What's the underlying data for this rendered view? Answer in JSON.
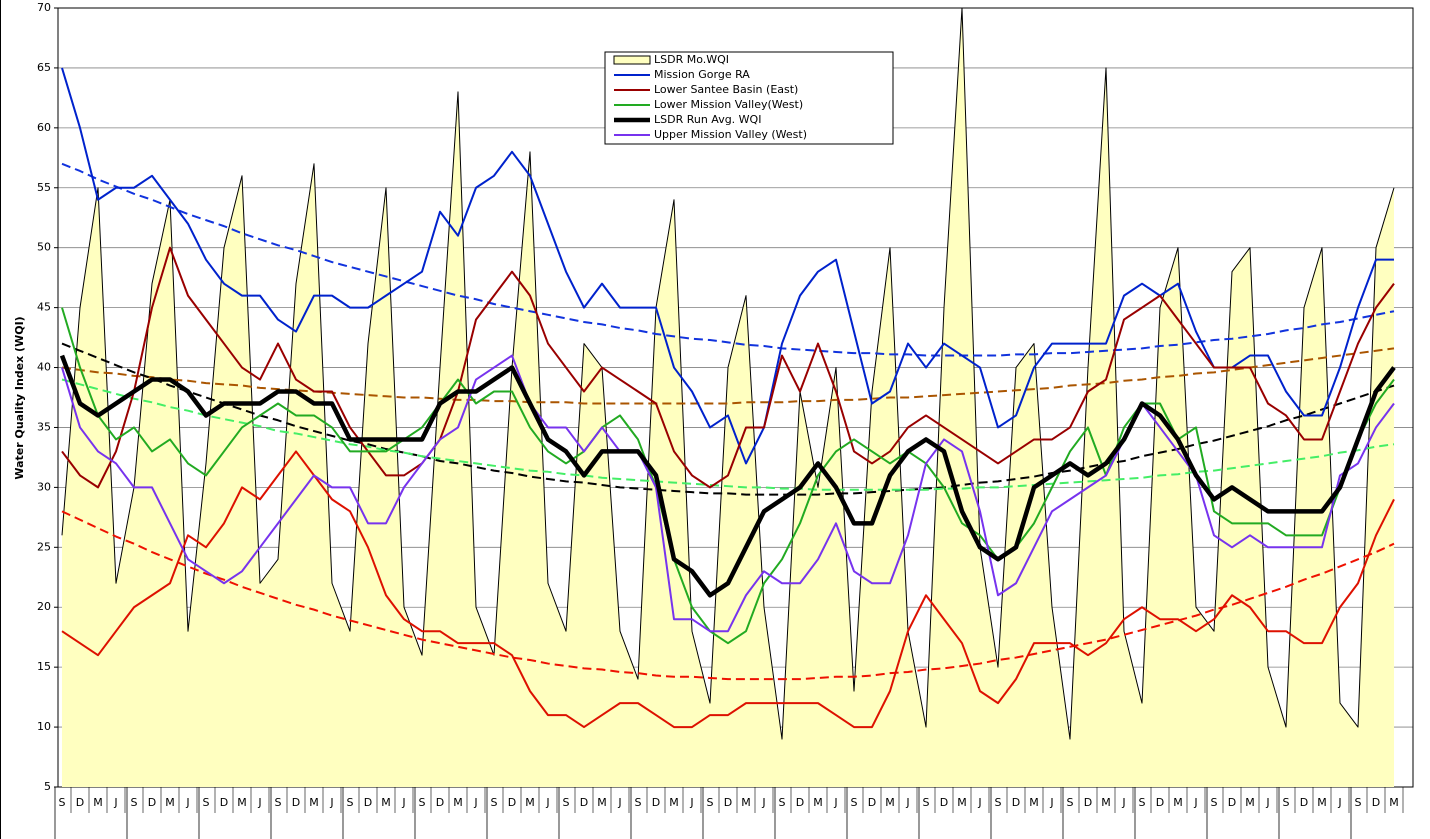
{
  "chart_data": {
    "type": "line",
    "y_label": "Water Quality Index (WQI)",
    "ylim": [
      5,
      70
    ],
    "yticks": [
      5,
      10,
      15,
      20,
      25,
      30,
      35,
      40,
      45,
      50,
      55,
      60,
      65,
      70
    ],
    "grid": true,
    "legend_position": "top",
    "categories": [
      "S",
      "D",
      "M",
      "J",
      "S",
      "D",
      "M",
      "J",
      "S",
      "D",
      "M",
      "J",
      "S",
      "D",
      "M",
      "J",
      "S",
      "D",
      "M",
      "J",
      "S",
      "D",
      "M",
      "J",
      "S",
      "D",
      "M",
      "J",
      "S",
      "D",
      "M",
      "J",
      "S",
      "D",
      "M",
      "J",
      "S",
      "D",
      "M",
      "J",
      "S",
      "D",
      "M",
      "J",
      "S",
      "D",
      "M",
      "J",
      "S",
      "D",
      "M",
      "J",
      "S",
      "D",
      "M",
      "J",
      "S",
      "D",
      "M",
      "J",
      "S",
      "D",
      "M",
      "J",
      "S",
      "D",
      "M",
      "J",
      "S",
      "D",
      "M",
      "J",
      "S",
      "D",
      "M"
    ],
    "series": [
      {
        "name": "LSDR Mo.WQI",
        "style": "area",
        "fill": "#ffffc0",
        "color": "#000000",
        "width": 1,
        "values": [
          26,
          45,
          55,
          22,
          30,
          47,
          54,
          18,
          32,
          50,
          56,
          22,
          24,
          47,
          57,
          22,
          18,
          42,
          55,
          20,
          16,
          40,
          63,
          20,
          16,
          40,
          58,
          22,
          18,
          42,
          40,
          18,
          14,
          45,
          54,
          18,
          12,
          40,
          46,
          20,
          9,
          38,
          30,
          40,
          13,
          38,
          50,
          18,
          10,
          45,
          70,
          25,
          15,
          40,
          42,
          20,
          9,
          40,
          65,
          18,
          12,
          45,
          50,
          20,
          18,
          48,
          50,
          15,
          10,
          45,
          50,
          12,
          10,
          50,
          55
        ]
      },
      {
        "style": "dashed",
        "color": "#1133dd",
        "width": 2,
        "values": [
          57.0,
          56.4,
          55.7,
          55.1,
          54.5,
          54.0,
          53.4,
          52.8,
          52.3,
          51.8,
          51.2,
          50.7,
          50.2,
          49.8,
          49.3,
          48.8,
          48.4,
          48.0,
          47.6,
          47.2,
          46.8,
          46.4,
          46.0,
          45.7,
          45.3,
          45.0,
          44.7,
          44.4,
          44.1,
          43.8,
          43.6,
          43.3,
          43.1,
          42.8,
          42.6,
          42.4,
          42.3,
          42.1,
          41.9,
          41.8,
          41.6,
          41.5,
          41.4,
          41.3,
          41.2,
          41.2,
          41.1,
          41.1,
          41.0,
          41.0,
          41.0,
          41.0,
          41.0,
          41.1,
          41.1,
          41.2,
          41.2,
          41.3,
          41.4,
          41.5,
          41.6,
          41.8,
          41.9,
          42.1,
          42.3,
          42.4,
          42.6,
          42.8,
          43.1,
          43.3,
          43.6,
          43.8,
          44.1,
          44.4,
          44.7
        ]
      },
      {
        "style": "dashed",
        "color": "#aa5500",
        "width": 2,
        "values": [
          40.0,
          39.8,
          39.6,
          39.5,
          39.3,
          39.2,
          39.0,
          38.9,
          38.7,
          38.6,
          38.5,
          38.3,
          38.2,
          38.1,
          38.0,
          37.9,
          37.8,
          37.7,
          37.6,
          37.5,
          37.5,
          37.4,
          37.3,
          37.3,
          37.2,
          37.2,
          37.1,
          37.1,
          37.1,
          37.0,
          37.0,
          37.0,
          37.0,
          37.0,
          37.0,
          37.0,
          37.0,
          37.0,
          37.1,
          37.1,
          37.1,
          37.2,
          37.2,
          37.3,
          37.3,
          37.4,
          37.5,
          37.5,
          37.6,
          37.7,
          37.8,
          37.9,
          38.0,
          38.1,
          38.2,
          38.3,
          38.5,
          38.6,
          38.7,
          38.9,
          39.0,
          39.2,
          39.3,
          39.5,
          39.6,
          39.8,
          40.0,
          40.2,
          40.4,
          40.6,
          40.8,
          41.0,
          41.2,
          41.4,
          41.6
        ]
      },
      {
        "style": "dashed",
        "color": "#000000",
        "width": 2,
        "values": [
          42.0,
          41.4,
          40.8,
          40.2,
          39.6,
          39.1,
          38.5,
          38.0,
          37.5,
          37.0,
          36.5,
          36.0,
          35.6,
          35.1,
          34.7,
          34.3,
          33.9,
          33.6,
          33.2,
          32.9,
          32.6,
          32.2,
          32.0,
          31.7,
          31.4,
          31.2,
          30.9,
          30.7,
          30.5,
          30.4,
          30.2,
          30.0,
          29.9,
          29.8,
          29.7,
          29.6,
          29.5,
          29.5,
          29.4,
          29.4,
          29.4,
          29.4,
          29.4,
          29.5,
          29.5,
          29.6,
          29.7,
          29.8,
          29.9,
          30.0,
          30.2,
          30.4,
          30.5,
          30.7,
          30.9,
          31.2,
          31.4,
          31.7,
          32.0,
          32.2,
          32.6,
          32.9,
          33.2,
          33.6,
          33.9,
          34.3,
          34.7,
          35.1,
          35.6,
          36.0,
          36.5,
          37.0,
          37.5,
          38.0,
          38.5
        ]
      },
      {
        "style": "dashed",
        "color": "#44ee66",
        "width": 2,
        "values": [
          39.0,
          38.6,
          38.2,
          37.8,
          37.4,
          37.1,
          36.7,
          36.4,
          36.0,
          35.7,
          35.4,
          35.1,
          34.7,
          34.5,
          34.2,
          33.9,
          33.6,
          33.4,
          33.1,
          32.9,
          32.6,
          32.4,
          32.2,
          32.0,
          31.8,
          31.6,
          31.4,
          31.3,
          31.1,
          31.0,
          30.8,
          30.7,
          30.6,
          30.5,
          30.4,
          30.3,
          30.2,
          30.1,
          30.0,
          30.0,
          29.9,
          29.9,
          29.8,
          29.8,
          29.8,
          29.8,
          29.8,
          29.8,
          29.8,
          29.9,
          29.9,
          30.0,
          30.0,
          30.1,
          30.2,
          30.3,
          30.4,
          30.5,
          30.6,
          30.7,
          30.8,
          31.0,
          31.1,
          31.3,
          31.4,
          31.6,
          31.8,
          32.0,
          32.2,
          32.4,
          32.6,
          32.9,
          33.1,
          33.4,
          33.6
        ]
      },
      {
        "style": "dashed",
        "color": "#ee1100",
        "width": 2,
        "values": [
          28.0,
          27.3,
          26.6,
          25.9,
          25.3,
          24.6,
          24.0,
          23.4,
          22.8,
          22.3,
          21.7,
          21.2,
          20.7,
          20.2,
          19.8,
          19.3,
          18.9,
          18.5,
          18.1,
          17.7,
          17.3,
          17.0,
          16.7,
          16.4,
          16.1,
          15.8,
          15.6,
          15.3,
          15.1,
          14.9,
          14.8,
          14.6,
          14.5,
          14.3,
          14.2,
          14.2,
          14.1,
          14.0,
          14.0,
          14.0,
          14.0,
          14.0,
          14.1,
          14.2,
          14.2,
          14.3,
          14.5,
          14.6,
          14.8,
          14.9,
          15.1,
          15.3,
          15.6,
          15.8,
          16.1,
          16.4,
          16.7,
          17.0,
          17.3,
          17.7,
          18.1,
          18.5,
          18.9,
          19.3,
          19.8,
          20.2,
          20.7,
          21.2,
          21.7,
          22.3,
          22.8,
          23.4,
          24.0,
          24.6,
          25.3
        ]
      },
      {
        "style": "solid",
        "color": "#dd1100",
        "width": 2,
        "values": [
          18,
          17,
          16,
          18,
          20,
          21,
          22,
          26,
          25,
          27,
          30,
          29,
          31,
          33,
          31,
          29,
          28,
          25,
          21,
          19,
          18,
          18,
          17,
          17,
          17,
          16,
          13,
          11,
          11,
          10,
          11,
          12,
          12,
          11,
          10,
          10,
          11,
          11,
          12,
          12,
          12,
          12,
          12,
          11,
          10,
          10,
          13,
          18,
          21,
          19,
          17,
          13,
          12,
          14,
          17,
          17,
          17,
          16,
          17,
          19,
          20,
          19,
          19,
          18,
          19,
          21,
          20,
          18,
          18,
          17,
          17,
          20,
          22,
          26,
          29
        ]
      },
      {
        "name": "Mission Gorge RA",
        "style": "solid",
        "color": "#0022cc",
        "width": 2,
        "values": [
          65,
          60,
          54,
          55,
          55,
          56,
          54,
          52,
          49,
          47,
          46,
          46,
          44,
          43,
          46,
          46,
          45,
          45,
          46,
          47,
          48,
          53,
          51,
          55,
          56,
          58,
          56,
          52,
          48,
          45,
          47,
          45,
          45,
          45,
          40,
          38,
          35,
          36,
          32,
          35,
          42,
          46,
          48,
          49,
          43,
          37,
          38,
          42,
          40,
          42,
          41,
          40,
          35,
          36,
          40,
          42,
          42,
          42,
          42,
          46,
          47,
          46,
          47,
          43,
          40,
          40,
          41,
          41,
          38,
          36,
          36,
          40,
          45,
          49,
          49
        ]
      },
      {
        "name": "Lower Santee Basin (East)",
        "style": "solid",
        "color": "#990000",
        "width": 2,
        "values": [
          33,
          31,
          30,
          33,
          38,
          45,
          50,
          46,
          44,
          42,
          40,
          39,
          42,
          39,
          38,
          38,
          35,
          33,
          31,
          31,
          32,
          34,
          38,
          44,
          46,
          48,
          46,
          42,
          40,
          38,
          40,
          39,
          38,
          37,
          33,
          31,
          30,
          31,
          35,
          35,
          41,
          38,
          42,
          38,
          33,
          32,
          33,
          35,
          36,
          35,
          34,
          33,
          32,
          33,
          34,
          34,
          35,
          38,
          39,
          44,
          45,
          46,
          44,
          42,
          40,
          40,
          40,
          37,
          36,
          34,
          34,
          38,
          42,
          45,
          47
        ]
      },
      {
        "name": "Lower Mission Valley(West)",
        "style": "solid",
        "color": "#22aa22",
        "width": 2,
        "values": [
          45,
          40,
          36,
          34,
          35,
          33,
          34,
          32,
          31,
          33,
          35,
          36,
          37,
          36,
          36,
          35,
          33,
          33,
          33,
          34,
          35,
          37,
          39,
          37,
          38,
          38,
          35,
          33,
          32,
          33,
          35,
          36,
          34,
          30,
          24,
          20,
          18,
          17,
          18,
          22,
          24,
          27,
          31,
          33,
          34,
          33,
          32,
          33,
          32,
          30,
          27,
          26,
          24,
          25,
          27,
          30,
          33,
          35,
          31,
          35,
          37,
          37,
          34,
          35,
          28,
          27,
          27,
          27,
          26,
          26,
          26,
          30,
          34,
          37,
          39
        ]
      },
      {
        "name": "Upper Mission Valley (West)",
        "style": "solid",
        "color": "#7733ee",
        "width": 2,
        "values": [
          40,
          35,
          33,
          32,
          30,
          30,
          27,
          24,
          23,
          22,
          23,
          25,
          27,
          29,
          31,
          30,
          30,
          27,
          27,
          30,
          32,
          34,
          35,
          39,
          40,
          41,
          37,
          35,
          35,
          33,
          35,
          33,
          33,
          30,
          19,
          19,
          18,
          18,
          21,
          23,
          22,
          22,
          24,
          27,
          23,
          22,
          22,
          26,
          32,
          34,
          33,
          28,
          21,
          22,
          25,
          28,
          29,
          30,
          31,
          34,
          37,
          35,
          33,
          31,
          26,
          25,
          26,
          25,
          25,
          25,
          25,
          31,
          32,
          35,
          37
        ]
      },
      {
        "name": "LSDR Run Avg. WQI",
        "style": "solid",
        "color": "#000000",
        "width": 4.5,
        "values": [
          41,
          37,
          36,
          37,
          38,
          39,
          39,
          38,
          36,
          37,
          37,
          37,
          38,
          38,
          37,
          37,
          34,
          34,
          34,
          34,
          34,
          37,
          38,
          38,
          39,
          40,
          37,
          34,
          33,
          31,
          33,
          33,
          33,
          31,
          24,
          23,
          21,
          22,
          25,
          28,
          29,
          30,
          32,
          30,
          27,
          27,
          31,
          33,
          34,
          33,
          28,
          25,
          24,
          25,
          30,
          31,
          32,
          31,
          32,
          34,
          37,
          36,
          34,
          31,
          29,
          30,
          29,
          28,
          28,
          28,
          28,
          30,
          34,
          38,
          40
        ]
      }
    ],
    "legend_order": [
      0,
      7,
      8,
      9,
      11,
      10
    ]
  }
}
